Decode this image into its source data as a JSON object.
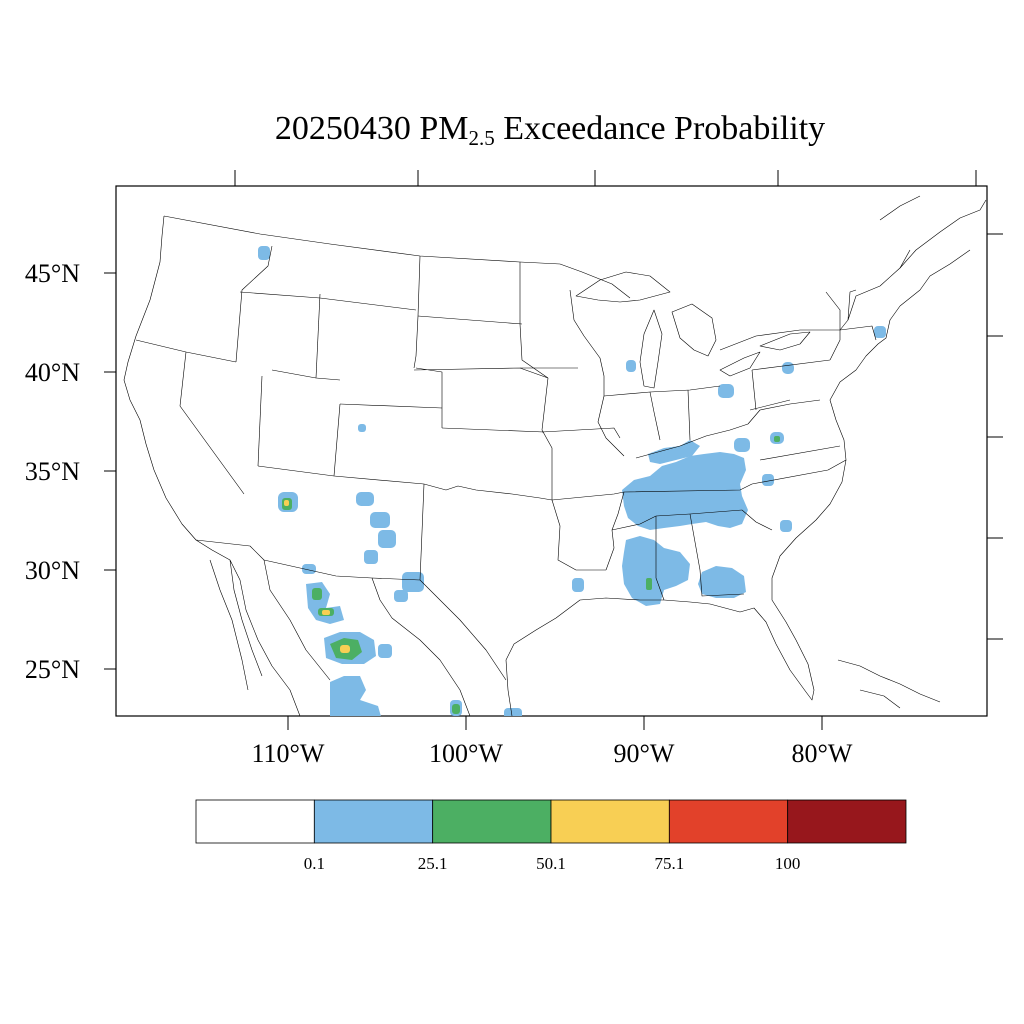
{
  "title": {
    "date": "20250430",
    "pollutant_main": "PM",
    "pollutant_sub": "2.5",
    "suffix": "Exceedance Probability"
  },
  "axes": {
    "lat_labels": [
      "45°N",
      "40°N",
      "35°N",
      "30°N",
      "25°N"
    ],
    "lon_labels": [
      "110°W",
      "100°W",
      "90°W",
      "80°W"
    ]
  },
  "legend": {
    "bins": [
      {
        "label": "",
        "color": "#ffffff"
      },
      {
        "label": "0.1",
        "color": "#7dbae6"
      },
      {
        "label": "25.1",
        "color": "#4caf63"
      },
      {
        "label": "50.1",
        "color": "#f8cf54"
      },
      {
        "label": "75.1",
        "color": "#e2412a"
      },
      {
        "label": "100",
        "color": "#97171c"
      }
    ],
    "thresholds": [
      "0.1",
      "25.1",
      "50.1",
      "75.1",
      "100"
    ]
  },
  "colors": {
    "prob_low": "#7dbae6",
    "prob_mid": "#4caf63",
    "prob_high": "#f8cf54",
    "prob_vhigh": "#e2412a",
    "prob_max": "#97171c",
    "boundary": "#000000"
  }
}
